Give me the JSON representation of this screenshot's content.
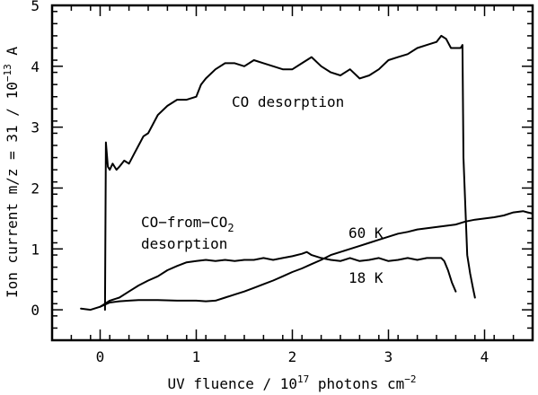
{
  "chart_data": {
    "type": "line",
    "xlabel_main": "UV fluence / 10",
    "xlabel_exp": "17",
    "xlabel_tail": " photons cm",
    "xlabel_tail_exp": "−2",
    "ylabel_main": "Ion current m/z = 31 / 10",
    "ylabel_exp": "−13",
    "ylabel_tail": " A",
    "xlim": [
      -0.5,
      4.5
    ],
    "ylim": [
      -0.5,
      5
    ],
    "x_ticks": [
      0,
      1,
      2,
      3,
      4
    ],
    "y_ticks": [
      0,
      1,
      2,
      3,
      4,
      5
    ],
    "grid": false,
    "annotations": {
      "co_desorption": "CO desorption",
      "co_from_co2_line1": "CO−from−CO",
      "co_from_co2_sub": "2",
      "co_from_co2_line2": "desorption",
      "label_60k": "60 K",
      "label_18k": "18 K"
    },
    "series": [
      {
        "x": [
          0.05,
          0.06,
          0.08,
          0.1,
          0.13,
          0.17,
          0.2,
          0.25,
          0.3,
          0.35,
          0.4,
          0.45,
          0.5,
          0.6,
          0.7,
          0.8,
          0.9,
          1.0,
          1.05,
          1.1,
          1.2,
          1.3,
          1.4,
          1.5,
          1.6,
          1.7,
          1.8,
          1.9,
          2.0,
          2.1,
          2.2,
          2.3,
          2.4,
          2.5,
          2.6,
          2.7,
          2.8,
          2.9,
          3.0,
          3.1,
          3.2,
          3.3,
          3.4,
          3.5,
          3.55,
          3.6,
          3.65,
          3.7,
          3.75,
          3.77,
          3.78,
          3.82,
          3.85,
          3.88,
          3.9
        ],
        "y": [
          0.0,
          2.75,
          2.35,
          2.3,
          2.4,
          2.3,
          2.35,
          2.45,
          2.4,
          2.55,
          2.7,
          2.85,
          2.9,
          3.2,
          3.35,
          3.45,
          3.45,
          3.5,
          3.7,
          3.8,
          3.95,
          4.05,
          4.05,
          4.0,
          4.1,
          4.05,
          4.0,
          3.95,
          3.95,
          4.05,
          4.15,
          4.0,
          3.9,
          3.85,
          3.95,
          3.8,
          3.85,
          3.95,
          4.1,
          4.15,
          4.2,
          4.3,
          4.35,
          4.4,
          4.5,
          4.45,
          4.3,
          4.3,
          4.3,
          4.35,
          2.5,
          0.9,
          0.6,
          0.35,
          0.2
        ]
      },
      {
        "x": [
          -0.2,
          -0.1,
          0.0,
          0.05,
          0.1,
          0.2,
          0.3,
          0.4,
          0.5,
          0.6,
          0.7,
          0.8,
          0.9,
          1.0,
          1.1,
          1.2,
          1.3,
          1.4,
          1.5,
          1.6,
          1.7,
          1.8,
          1.9,
          2.0,
          2.1,
          2.15,
          2.2,
          2.3,
          2.4,
          2.5,
          2.6,
          2.7,
          2.8,
          2.9,
          3.0,
          3.1,
          3.2,
          3.3,
          3.4,
          3.5,
          3.55,
          3.58,
          3.62,
          3.66,
          3.7
        ],
        "y": [
          0.02,
          0.0,
          0.05,
          0.1,
          0.15,
          0.2,
          0.3,
          0.4,
          0.48,
          0.55,
          0.65,
          0.72,
          0.78,
          0.8,
          0.82,
          0.8,
          0.82,
          0.8,
          0.82,
          0.82,
          0.85,
          0.82,
          0.85,
          0.88,
          0.92,
          0.95,
          0.9,
          0.85,
          0.82,
          0.8,
          0.85,
          0.8,
          0.82,
          0.85,
          0.8,
          0.82,
          0.85,
          0.82,
          0.85,
          0.85,
          0.85,
          0.8,
          0.65,
          0.45,
          0.3
        ]
      },
      {
        "x": [
          0.0,
          0.1,
          0.2,
          0.3,
          0.4,
          0.5,
          0.6,
          0.8,
          1.0,
          1.1,
          1.2,
          1.3,
          1.4,
          1.5,
          1.6,
          1.7,
          1.8,
          1.9,
          2.0,
          2.1,
          2.2,
          2.3,
          2.4,
          2.5,
          2.6,
          2.7,
          2.8,
          2.9,
          3.0,
          3.1,
          3.2,
          3.3,
          3.4,
          3.5,
          3.6,
          3.7,
          3.8,
          3.9,
          4.0,
          4.1,
          4.2,
          4.3,
          4.4,
          4.45,
          4.5
        ],
        "y": [
          0.05,
          0.12,
          0.14,
          0.15,
          0.16,
          0.16,
          0.16,
          0.15,
          0.15,
          0.14,
          0.15,
          0.2,
          0.25,
          0.3,
          0.36,
          0.42,
          0.48,
          0.55,
          0.62,
          0.68,
          0.75,
          0.82,
          0.9,
          0.95,
          1.0,
          1.05,
          1.1,
          1.15,
          1.2,
          1.25,
          1.28,
          1.32,
          1.34,
          1.36,
          1.38,
          1.4,
          1.45,
          1.48,
          1.5,
          1.52,
          1.55,
          1.6,
          1.62,
          1.6,
          1.58
        ]
      }
    ]
  }
}
